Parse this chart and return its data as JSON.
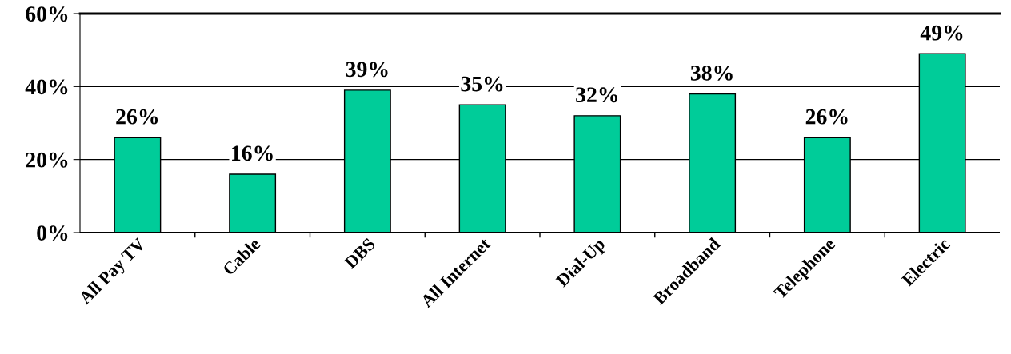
{
  "chart_data": {
    "type": "bar",
    "categories": [
      "All Pay TV",
      "Cable",
      "DBS",
      "All Internet",
      "Dial-Up",
      "Broadband",
      "Telephone",
      "Electric"
    ],
    "values": [
      26,
      16,
      39,
      35,
      32,
      38,
      26,
      49
    ],
    "color": "#00cc99",
    "ylim": [
      0,
      60
    ],
    "yticks": [
      {
        "value": 0,
        "label": "0%"
      },
      {
        "value": 20,
        "label": "20%"
      },
      {
        "value": 40,
        "label": "40%"
      },
      {
        "value": 60,
        "label": "60%"
      }
    ],
    "value_labels": [
      "26%",
      "16%",
      "39%",
      "35%",
      "32%",
      "38%",
      "26%",
      "49%"
    ],
    "grid": "y",
    "legend": false
  }
}
